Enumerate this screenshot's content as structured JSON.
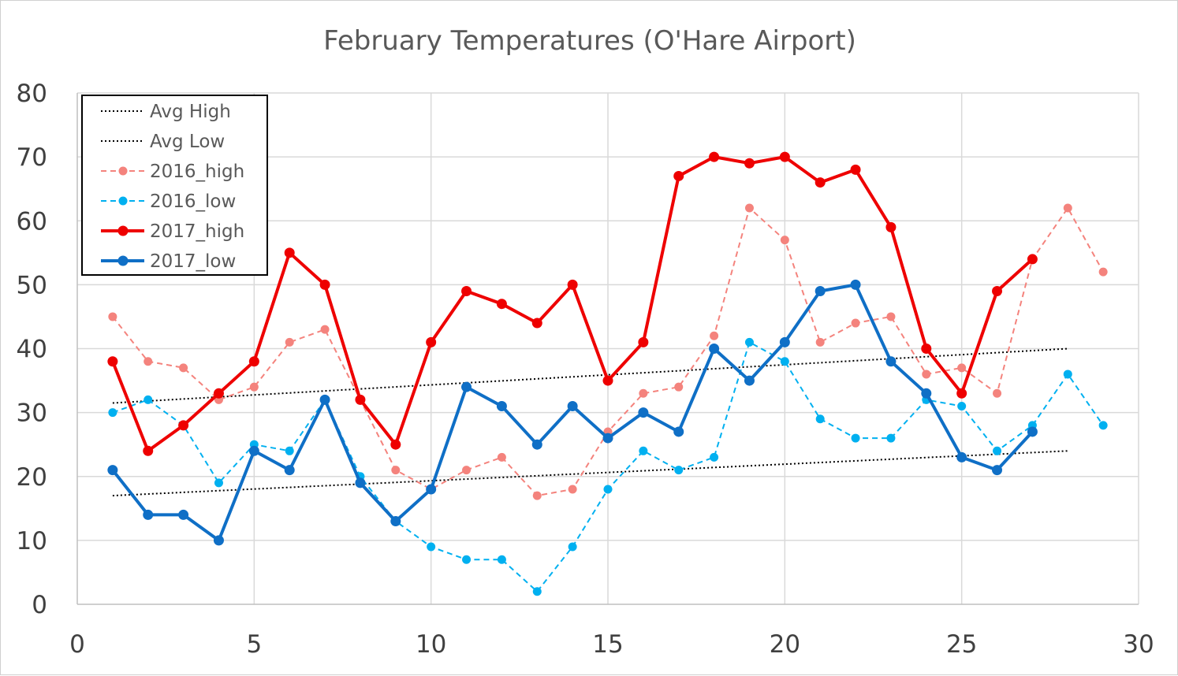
{
  "chart_data": {
    "type": "line",
    "title": "February Temperatures (O'Hare Airport)",
    "xlabel": "",
    "ylabel": "",
    "xlim": [
      0,
      30
    ],
    "ylim": [
      0,
      80
    ],
    "xticks": [
      0,
      5,
      10,
      15,
      20,
      25,
      30
    ],
    "yticks": [
      0,
      10,
      20,
      30,
      40,
      50,
      60,
      70,
      80
    ],
    "grid": true,
    "legend": "top-left",
    "series": [
      {
        "name": "Avg High",
        "style": "dotted-trendline",
        "color": "#000000",
        "x": [
          1,
          28
        ],
        "y": [
          31.5,
          40
        ]
      },
      {
        "name": "Avg Low",
        "style": "dotted-trendline",
        "color": "#000000",
        "x": [
          1,
          28
        ],
        "y": [
          17,
          24
        ]
      },
      {
        "name": "2016_high",
        "style": "dashed-marker",
        "color": "#f4837d",
        "x": [
          1,
          2,
          3,
          4,
          5,
          6,
          7,
          8,
          9,
          10,
          11,
          12,
          13,
          14,
          15,
          16,
          17,
          18,
          19,
          20,
          21,
          22,
          23,
          24,
          25,
          26,
          27,
          28,
          29
        ],
        "y": [
          45,
          38,
          37,
          32,
          34,
          41,
          43,
          32,
          21,
          18,
          21,
          23,
          17,
          18,
          27,
          33,
          34,
          42,
          62,
          57,
          41,
          44,
          45,
          36,
          37,
          33,
          54,
          62,
          52
        ]
      },
      {
        "name": "2016_low",
        "style": "dashed-marker",
        "color": "#00b0f0",
        "x": [
          1,
          2,
          3,
          4,
          5,
          6,
          7,
          8,
          9,
          10,
          11,
          12,
          13,
          14,
          15,
          16,
          17,
          18,
          19,
          20,
          21,
          22,
          23,
          24,
          25,
          26,
          27,
          28,
          29
        ],
        "y": [
          30,
          32,
          28,
          19,
          25,
          24,
          32,
          20,
          13,
          9,
          7,
          7,
          2,
          9,
          18,
          24,
          21,
          23,
          41,
          38,
          29,
          26,
          26,
          32,
          31,
          24,
          28,
          36,
          28
        ]
      },
      {
        "name": "2017_high",
        "style": "solid-marker",
        "color": "#ee0000",
        "x": [
          1,
          2,
          3,
          4,
          5,
          6,
          7,
          8,
          9,
          10,
          11,
          12,
          13,
          14,
          15,
          16,
          17,
          18,
          19,
          20,
          21,
          22,
          23,
          24,
          25,
          26,
          27
        ],
        "y": [
          38,
          24,
          28,
          33,
          38,
          55,
          50,
          32,
          25,
          41,
          49,
          47,
          44,
          50,
          35,
          41,
          67,
          70,
          69,
          70,
          66,
          68,
          59,
          40,
          33,
          49,
          54
        ]
      },
      {
        "name": "2017_low",
        "style": "solid-marker",
        "color": "#0f6fc6",
        "x": [
          1,
          2,
          3,
          4,
          5,
          6,
          7,
          8,
          9,
          10,
          11,
          12,
          13,
          14,
          15,
          16,
          17,
          18,
          19,
          20,
          21,
          22,
          23,
          24,
          25,
          26,
          27
        ],
        "y": [
          21,
          14,
          14,
          10,
          24,
          21,
          32,
          19,
          13,
          18,
          34,
          31,
          25,
          31,
          26,
          30,
          27,
          40,
          35,
          41,
          49,
          50,
          38,
          33,
          23,
          21,
          27
        ]
      }
    ]
  }
}
